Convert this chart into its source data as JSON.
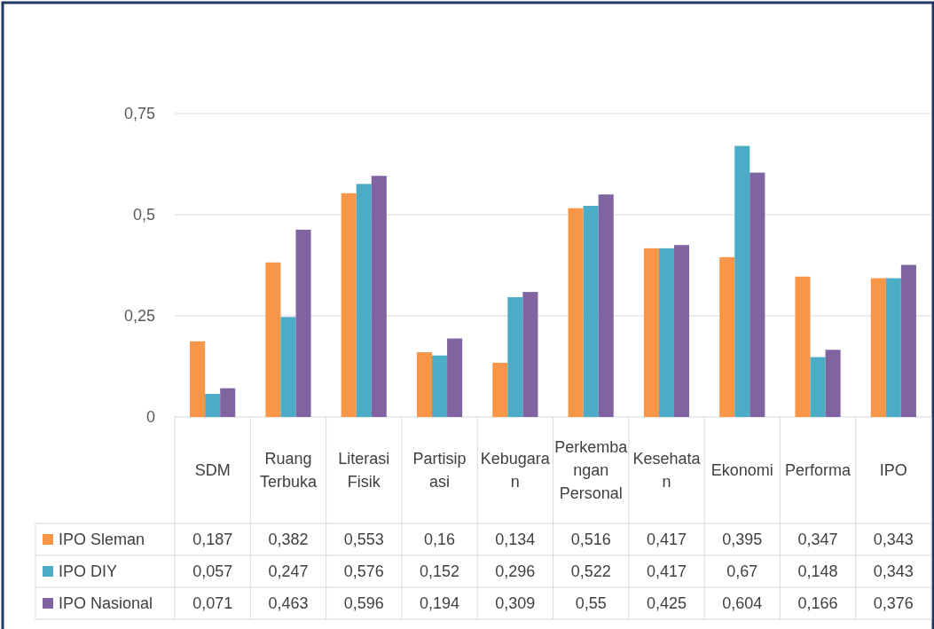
{
  "chart_data": {
    "type": "bar",
    "categories": [
      "SDM",
      "Ruang Terbuka",
      "Literasi Fisik",
      "Partisipasi",
      "Kebugaran",
      "Perkembangan Personal",
      "Kesehatan",
      "Ekonomi",
      "Performa",
      "IPO"
    ],
    "series": [
      {
        "name": "IPO Sleman",
        "color": "#f79646",
        "values": [
          0.187,
          0.382,
          0.553,
          0.16,
          0.134,
          0.516,
          0.417,
          0.395,
          0.347,
          0.343
        ],
        "value_labels": [
          "0,187",
          "0,382",
          "0,553",
          "0,16",
          "0,134",
          "0,516",
          "0,417",
          "0,395",
          "0,347",
          "0,343"
        ]
      },
      {
        "name": "IPO DIY",
        "color": "#4bacc6",
        "values": [
          0.057,
          0.247,
          0.576,
          0.152,
          0.296,
          0.522,
          0.417,
          0.67,
          0.148,
          0.343
        ],
        "value_labels": [
          "0,057",
          "0,247",
          "0,576",
          "0,152",
          "0,296",
          "0,522",
          "0,417",
          "0,67",
          "0,148",
          "0,343"
        ]
      },
      {
        "name": "IPO Nasional",
        "color": "#8064a2",
        "values": [
          0.071,
          0.463,
          0.596,
          0.194,
          0.309,
          0.55,
          0.425,
          0.604,
          0.166,
          0.376
        ],
        "value_labels": [
          "0,071",
          "0,463",
          "0,596",
          "0,194",
          "0,309",
          "0,55",
          "0,425",
          "0,604",
          "0,166",
          "0,376"
        ]
      }
    ],
    "ylim": [
      0,
      0.75
    ],
    "yticks": [
      {
        "value": 0,
        "label": "0"
      },
      {
        "value": 0.25,
        "label": "0,25"
      },
      {
        "value": 0.5,
        "label": "0,5"
      },
      {
        "value": 0.75,
        "label": "0,75"
      }
    ],
    "grid": "y",
    "legend": "bottom left"
  }
}
